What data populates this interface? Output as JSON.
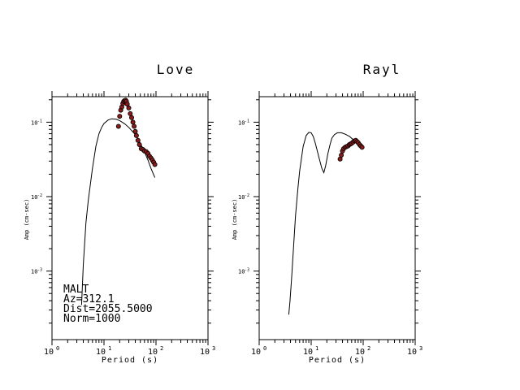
{
  "chart_data": [
    {
      "type": "line",
      "panel": "left",
      "title": "Love",
      "xlabel": "Period (s)",
      "ylabel": "Amp (cm-sec)",
      "xscale": "log",
      "yscale": "log",
      "xlim": [
        1,
        1000
      ],
      "ylim": [
        0.00012,
        0.22
      ],
      "x_ticks": [
        {
          "value": 1,
          "label": "10",
          "exp": "0"
        },
        {
          "value": 10,
          "label": "10",
          "exp": "1"
        },
        {
          "value": 100,
          "label": "10",
          "exp": "2"
        },
        {
          "value": 1000,
          "label": "10",
          "exp": "3"
        }
      ],
      "y_ticks": [
        {
          "value": 0.1,
          "label": "10",
          "exp": "-1"
        },
        {
          "value": 0.01,
          "label": "10",
          "exp": "-2"
        },
        {
          "value": 0.001,
          "label": "10",
          "exp": "-3"
        }
      ],
      "series": [
        {
          "kind": "curve",
          "x": [
            3.7,
            4.0,
            4.5,
            5.0,
            6.0,
            7.0,
            8.0,
            9.0,
            10.0,
            12.0,
            14.0,
            17.0,
            20.0,
            25.0,
            30.0,
            40.0,
            50.0,
            60.0,
            70.0,
            80.0,
            95.0
          ],
          "y": [
            0.00035,
            0.0012,
            0.0045,
            0.009,
            0.024,
            0.048,
            0.07,
            0.085,
            0.096,
            0.107,
            0.111,
            0.11,
            0.105,
            0.095,
            0.085,
            0.068,
            0.052,
            0.04,
            0.031,
            0.024,
            0.018
          ]
        },
        {
          "kind": "points",
          "color": "#8b1a1a",
          "x": [
            19.0,
            20.0,
            21.0,
            22.0,
            23.0,
            24.0,
            25.0,
            26.0,
            27.0,
            28.0,
            30.0,
            32.0,
            34.0,
            36.0,
            38.0,
            40.0,
            42.0,
            45.0,
            48.0,
            52.0,
            56.0,
            60.0,
            65.0,
            70.0,
            75.0,
            80.0,
            85.0,
            90.0,
            95.0
          ],
          "y": [
            0.088,
            0.12,
            0.145,
            0.16,
            0.178,
            0.19,
            0.195,
            0.198,
            0.19,
            0.175,
            0.155,
            0.13,
            0.115,
            0.1,
            0.088,
            0.075,
            0.066,
            0.057,
            0.05,
            0.044,
            0.043,
            0.041,
            0.04,
            0.038,
            0.035,
            0.033,
            0.031,
            0.029,
            0.027
          ]
        }
      ],
      "annotations": [
        "MALT",
        "Az=312.1",
        "Dist=2055.5000",
        "Norm=1000"
      ]
    },
    {
      "type": "line",
      "panel": "right",
      "title": "Rayl",
      "xlabel": "Period (s)",
      "ylabel": "Amp (cm-sec)",
      "xscale": "log",
      "yscale": "log",
      "xlim": [
        1,
        1000
      ],
      "ylim": [
        0.00012,
        0.22
      ],
      "x_ticks": [
        {
          "value": 1,
          "label": "10",
          "exp": "0"
        },
        {
          "value": 10,
          "label": "10",
          "exp": "1"
        },
        {
          "value": 100,
          "label": "10",
          "exp": "2"
        },
        {
          "value": 1000,
          "label": "10",
          "exp": "3"
        }
      ],
      "y_ticks": [
        {
          "value": 0.1,
          "label": "10",
          "exp": "-1"
        },
        {
          "value": 0.01,
          "label": "10",
          "exp": "-2"
        },
        {
          "value": 0.001,
          "label": "10",
          "exp": "-3"
        }
      ],
      "series": [
        {
          "kind": "curve",
          "x": [
            3.7,
            3.9,
            4.2,
            4.6,
            5.0,
            5.5,
            6.0,
            7.0,
            8.0,
            9.0,
            10.0,
            11.0,
            12.0,
            13.0,
            14.0,
            16.0,
            17.5,
            19.0,
            21.0,
            23.0,
            25.0,
            28.0,
            32.0,
            38.0,
            45.0,
            55.0,
            65.0,
            75.0,
            85.0,
            95.0
          ],
          "y": [
            0.00026,
            0.00038,
            0.0008,
            0.0022,
            0.0055,
            0.012,
            0.022,
            0.047,
            0.066,
            0.073,
            0.072,
            0.064,
            0.052,
            0.042,
            0.034,
            0.024,
            0.021,
            0.026,
            0.038,
            0.05,
            0.061,
            0.068,
            0.072,
            0.072,
            0.069,
            0.064,
            0.058,
            0.052,
            0.048,
            0.044
          ]
        },
        {
          "kind": "points",
          "color": "#8b1a1a",
          "x": [
            36.0,
            38.0,
            40.0,
            42.0,
            45.0,
            48.0,
            51.0,
            54.0,
            57.0,
            60.0,
            64.0,
            68.0,
            72.0,
            76.0,
            80.0,
            85.0,
            90.0,
            95.0
          ],
          "y": [
            0.032,
            0.036,
            0.041,
            0.044,
            0.046,
            0.047,
            0.048,
            0.05,
            0.051,
            0.052,
            0.054,
            0.056,
            0.057,
            0.055,
            0.053,
            0.05,
            0.048,
            0.046
          ]
        }
      ],
      "annotations": []
    }
  ]
}
